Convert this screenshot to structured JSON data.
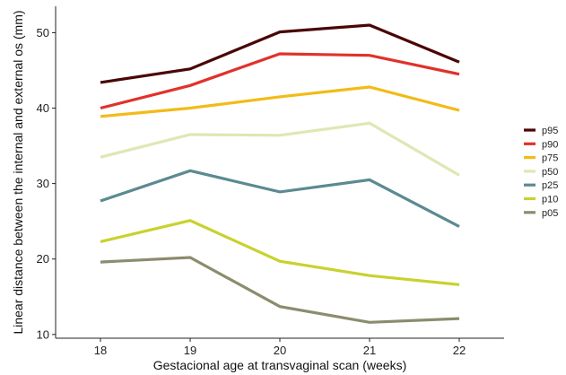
{
  "chart_data": {
    "type": "line",
    "title": "",
    "xlabel": "Gestacional age at transvaginal scan (weeks)",
    "ylabel": "Linear distance between the internal and external os (mm)",
    "x": [
      18,
      19,
      20,
      21,
      22
    ],
    "x_ticks": [
      "18",
      "19",
      "20",
      "21",
      "22"
    ],
    "y_ticks": [
      "10",
      "20",
      "30",
      "40",
      "50"
    ],
    "ylim": [
      9.5,
      53.5
    ],
    "xlim": [
      17.5,
      22.5
    ],
    "grid": false,
    "legend_position": "right",
    "series": [
      {
        "name": "p95",
        "color": "#4a0505",
        "values": [
          43.4,
          45.2,
          50.1,
          51.0,
          46.1
        ]
      },
      {
        "name": "p90",
        "color": "#e0322a",
        "values": [
          40.0,
          43.0,
          47.2,
          47.0,
          44.5
        ]
      },
      {
        "name": "p75",
        "color": "#f2bb17",
        "values": [
          38.9,
          40.0,
          41.5,
          42.8,
          39.7
        ]
      },
      {
        "name": "p50",
        "color": "#dde8b4",
        "values": [
          33.5,
          36.5,
          36.4,
          38.0,
          31.1
        ]
      },
      {
        "name": "p25",
        "color": "#5b8a91",
        "values": [
          27.7,
          31.7,
          28.9,
          30.5,
          24.3
        ]
      },
      {
        "name": "p10",
        "color": "#c8d22e",
        "values": [
          22.3,
          25.1,
          19.7,
          17.8,
          16.6
        ]
      },
      {
        "name": "p05",
        "color": "#8c8c6e",
        "values": [
          19.6,
          20.2,
          13.7,
          11.6,
          12.1
        ]
      }
    ]
  }
}
